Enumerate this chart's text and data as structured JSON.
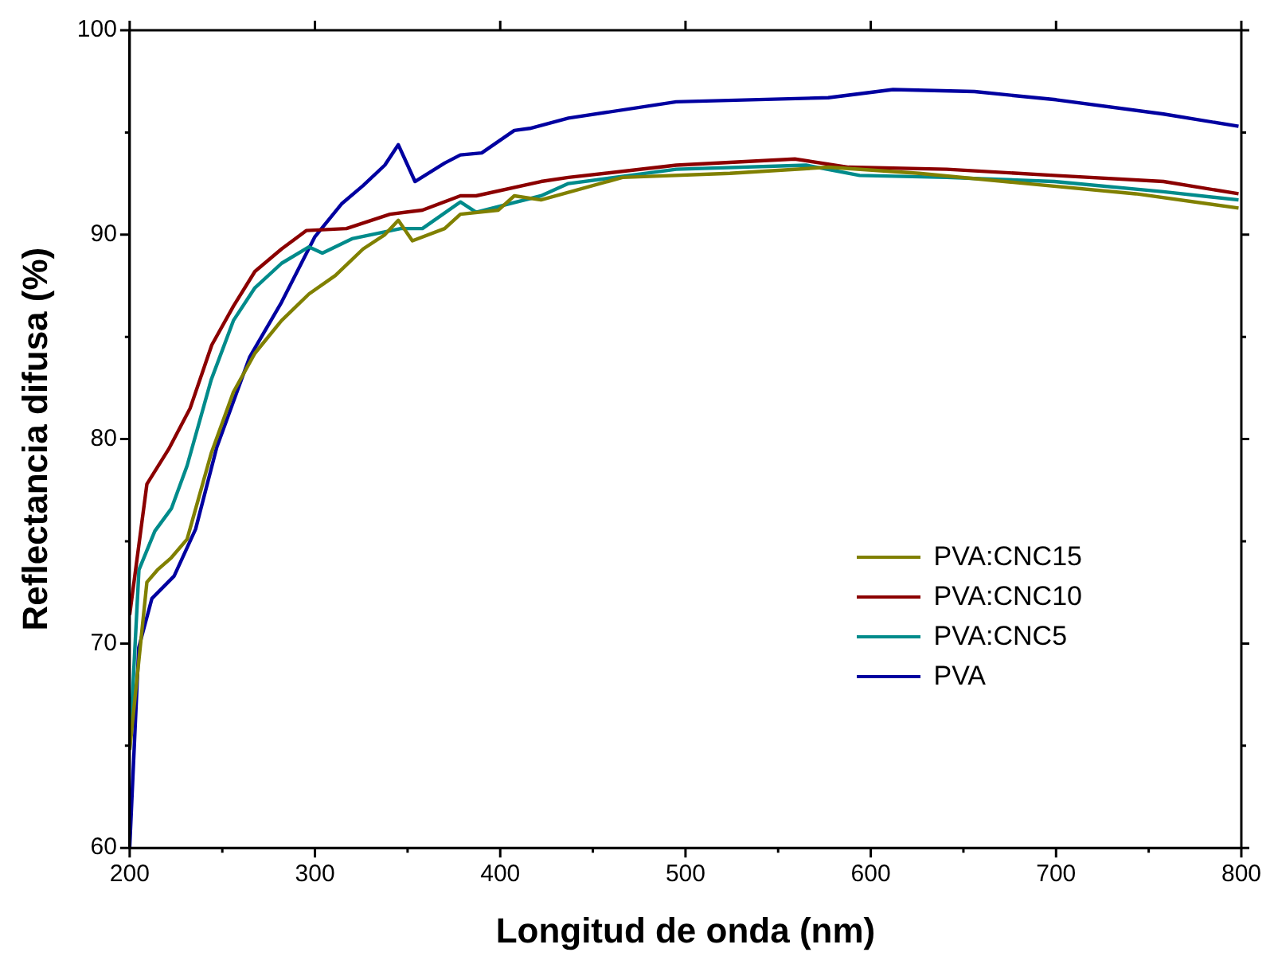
{
  "chart_data": {
    "type": "line",
    "xlabel": "Longitud de onda (nm)",
    "ylabel": "Reflectancia difusa (%)",
    "xlim": [
      200,
      800
    ],
    "xticks": [
      200,
      300,
      400,
      500,
      600,
      700,
      800
    ],
    "ylim": [
      60,
      100
    ],
    "yticks": [
      60,
      70,
      80,
      90,
      100
    ],
    "grid": false,
    "legend": "right",
    "marker": "none",
    "line_style": "solid",
    "series": [
      {
        "name": "PVA:CNC15",
        "color": "#808000",
        "x": [
          200,
          209.3,
          215,
          222.5,
          231,
          244,
          256,
          267.6,
          282,
          296.8,
          311,
          326,
          337.7,
          345,
          352.6,
          370,
          378.5,
          399,
          407.6,
          422,
          466,
          524,
          577,
          626,
          684,
          743,
          798.5
        ],
        "values": [
          64.8,
          73,
          73.6,
          74.2,
          75.1,
          79.3,
          82.3,
          84.2,
          85.8,
          87.1,
          88,
          89.3,
          90,
          90.7,
          89.7,
          90.3,
          91,
          91.2,
          91.9,
          91.7,
          92.8,
          93,
          93.3,
          93,
          92.5,
          92,
          91.3
        ]
      },
      {
        "name": "PVA:CNC10",
        "color": "#8b0000",
        "x": [
          200,
          209.3,
          221,
          232.6,
          244.3,
          256,
          267.6,
          282,
          295.3,
          317,
          340.5,
          358,
          378.5,
          387,
          422,
          436.8,
          495,
          559,
          588,
          641,
          699,
          758,
          798.5
        ],
        "values": [
          71.4,
          77.8,
          79.5,
          81.5,
          84.6,
          86.5,
          88.2,
          89.3,
          90.2,
          90.3,
          91,
          91.2,
          91.9,
          91.9,
          92.6,
          92.8,
          93.4,
          93.7,
          93.3,
          93.2,
          92.9,
          92.6,
          92
        ]
      },
      {
        "name": "PVA:CNC5",
        "color": "#008b8b",
        "x": [
          200,
          205,
          213.6,
          222.5,
          231,
          244,
          256,
          267.6,
          282,
          296.8,
          304,
          320,
          346.3,
          358,
          378.5,
          387,
          422,
          436.8,
          495,
          565,
          594,
          641,
          699,
          758,
          798.5
        ],
        "values": [
          64.8,
          73.6,
          75.5,
          76.6,
          78.7,
          82.9,
          85.8,
          87.4,
          88.6,
          89.4,
          89.1,
          89.8,
          90.3,
          90.3,
          91.6,
          91.1,
          91.9,
          92.5,
          93.2,
          93.4,
          92.9,
          92.8,
          92.6,
          92.1,
          91.7
        ]
      },
      {
        "name": "PVA",
        "color": "#0000a0",
        "x": [
          200,
          204.9,
          212,
          224,
          235.6,
          247,
          264.7,
          282,
          300,
          314.3,
          326,
          337.7,
          345,
          354,
          370,
          378.5,
          390,
          407.6,
          416,
          436.8,
          495,
          577,
          612,
          656,
          700,
          758,
          798.5
        ],
        "values": [
          60,
          69.8,
          72.2,
          73.3,
          75.6,
          79.6,
          84,
          86.7,
          89.9,
          91.5,
          92.4,
          93.4,
          94.4,
          92.6,
          93.5,
          93.9,
          94,
          95.1,
          95.2,
          95.7,
          96.5,
          96.7,
          97.1,
          97,
          96.6,
          95.9,
          95.3
        ]
      }
    ]
  }
}
